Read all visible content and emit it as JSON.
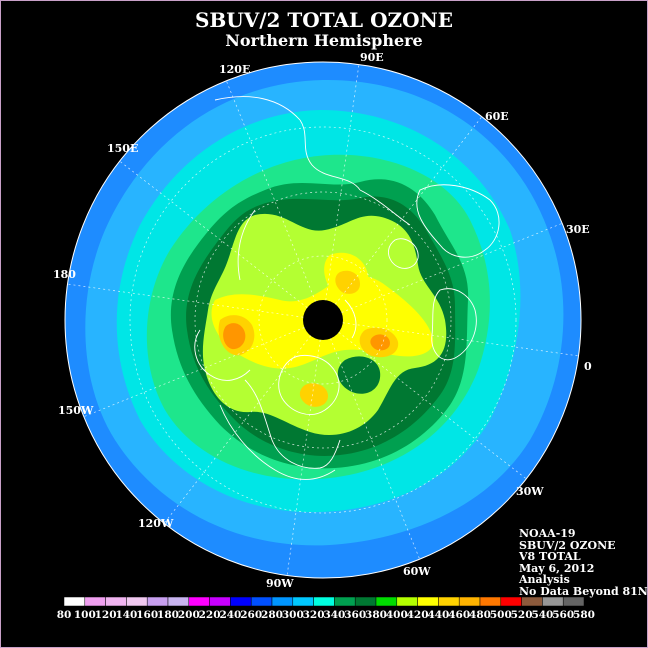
{
  "title": "SBUV/2 TOTAL OZONE",
  "subtitle": "Northern Hemisphere",
  "longitude_labels": [
    "90E",
    "60E",
    "30E",
    "0",
    "30W",
    "60W",
    "90W",
    "120W",
    "150W",
    "180",
    "150E",
    "120E"
  ],
  "info_lines": [
    "NOAA-19",
    "SBUV/2 OZONE",
    "V8 TOTAL",
    "May 6, 2012",
    "Analysis",
    "No Data Beyond 81N"
  ],
  "legend": {
    "tick_labels": [
      "80",
      "100",
      "120",
      "140",
      "160",
      "180",
      "200",
      "220",
      "240",
      "260",
      "280",
      "300",
      "320",
      "340",
      "360",
      "380",
      "400",
      "420",
      "440",
      "460",
      "480",
      "500",
      "520",
      "540",
      "560",
      "580"
    ],
    "colors": [
      "#ffffff",
      "#f0a0f0",
      "#f0b4f0",
      "#f0c8f0",
      "#c8a0f0",
      "#c8b4f0",
      "#ff00ff",
      "#c800ff",
      "#0000ff",
      "#0050ff",
      "#0096ff",
      "#00c8ff",
      "#00ffe0",
      "#00a050",
      "#007832",
      "#00dc00",
      "#b4ff00",
      "#ffff00",
      "#ffd200",
      "#ffb400",
      "#ff7800",
      "#ff0000",
      "#8c5a3c",
      "#969696",
      "#646464"
    ]
  },
  "colors": {
    "outer_band": "#1e8cff",
    "band_2": "#28b4ff",
    "band_3": "#00e6e6",
    "band_4": "#00dc64",
    "band_5": "#00b43c",
    "band_6": "#007832",
    "band_7": "#a0ff32",
    "band_8": "#ffff00",
    "band_9": "#ffd200",
    "band_10": "#ff8c00",
    "pole": "#000000"
  }
}
